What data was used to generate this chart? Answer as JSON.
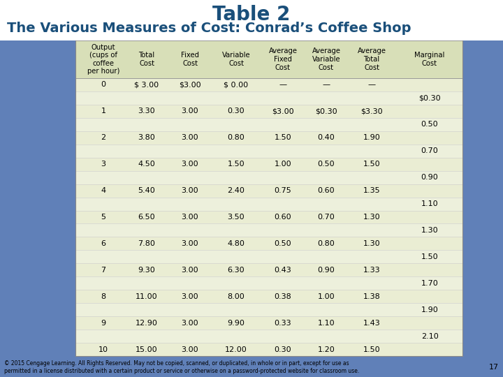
{
  "title_line1": "Table 2",
  "title_line2": "The Various Measures of Cost: Conrad’s Coffee Shop",
  "page_bg": "#6080b8",
  "table_bg": "#edf0dc",
  "header_bg": "#d8dfb8",
  "col_headers": [
    "Output\n(cups of\ncoffee\nper hour)",
    "Total\nCost",
    "Fixed\nCost",
    "Variable\nCost",
    "Average\nFixed\nCost",
    "Average\nVariable\nCost",
    "Average\nTotal\nCost",
    "Marginal\nCost"
  ],
  "rows": [
    [
      "0",
      "$ 3.00",
      "$3.00",
      "$ 0.00",
      "—",
      "—",
      "—",
      ""
    ],
    [
      "",
      "",
      "",
      "",
      "",
      "",
      "",
      "$0.30"
    ],
    [
      "1",
      "3.30",
      "3.00",
      "0.30",
      "$3.00",
      "$0.30",
      "$3.30",
      ""
    ],
    [
      "",
      "",
      "",
      "",
      "",
      "",
      "",
      "0.50"
    ],
    [
      "2",
      "3.80",
      "3.00",
      "0.80",
      "1.50",
      "0.40",
      "1.90",
      ""
    ],
    [
      "",
      "",
      "",
      "",
      "",
      "",
      "",
      "0.70"
    ],
    [
      "3",
      "4.50",
      "3.00",
      "1.50",
      "1.00",
      "0.50",
      "1.50",
      ""
    ],
    [
      "",
      "",
      "",
      "",
      "",
      "",
      "",
      "0.90"
    ],
    [
      "4",
      "5.40",
      "3.00",
      "2.40",
      "0.75",
      "0.60",
      "1.35",
      ""
    ],
    [
      "",
      "",
      "",
      "",
      "",
      "",
      "",
      "1.10"
    ],
    [
      "5",
      "6.50",
      "3.00",
      "3.50",
      "0.60",
      "0.70",
      "1.30",
      ""
    ],
    [
      "",
      "",
      "",
      "",
      "",
      "",
      "",
      "1.30"
    ],
    [
      "6",
      "7.80",
      "3.00",
      "4.80",
      "0.50",
      "0.80",
      "1.30",
      ""
    ],
    [
      "",
      "",
      "",
      "",
      "",
      "",
      "",
      "1.50"
    ],
    [
      "7",
      "9.30",
      "3.00",
      "6.30",
      "0.43",
      "0.90",
      "1.33",
      ""
    ],
    [
      "",
      "",
      "",
      "",
      "",
      "",
      "",
      "1.70"
    ],
    [
      "8",
      "11.00",
      "3.00",
      "8.00",
      "0.38",
      "1.00",
      "1.38",
      ""
    ],
    [
      "",
      "",
      "",
      "",
      "",
      "",
      "",
      "1.90"
    ],
    [
      "9",
      "12.90",
      "3.00",
      "9.90",
      "0.33",
      "1.10",
      "1.43",
      ""
    ],
    [
      "",
      "",
      "",
      "",
      "",
      "",
      "",
      "2.10"
    ],
    [
      "10",
      "15.00",
      "3.00",
      "12.00",
      "0.30",
      "1.20",
      "1.50",
      ""
    ]
  ],
  "footer": "© 2015 Cengage Learning. All Rights Reserved. May not be copied, scanned, or duplicated, in whole or in part, except for use as\npermitted in a license distributed with a certain product or service or otherwise on a password-protected website for classroom use.",
  "page_number": "17",
  "title1_fontsize": 20,
  "title2_fontsize": 14,
  "header_fontsize": 7.2,
  "row_fontsize": 8.0,
  "footer_fontsize": 5.5
}
